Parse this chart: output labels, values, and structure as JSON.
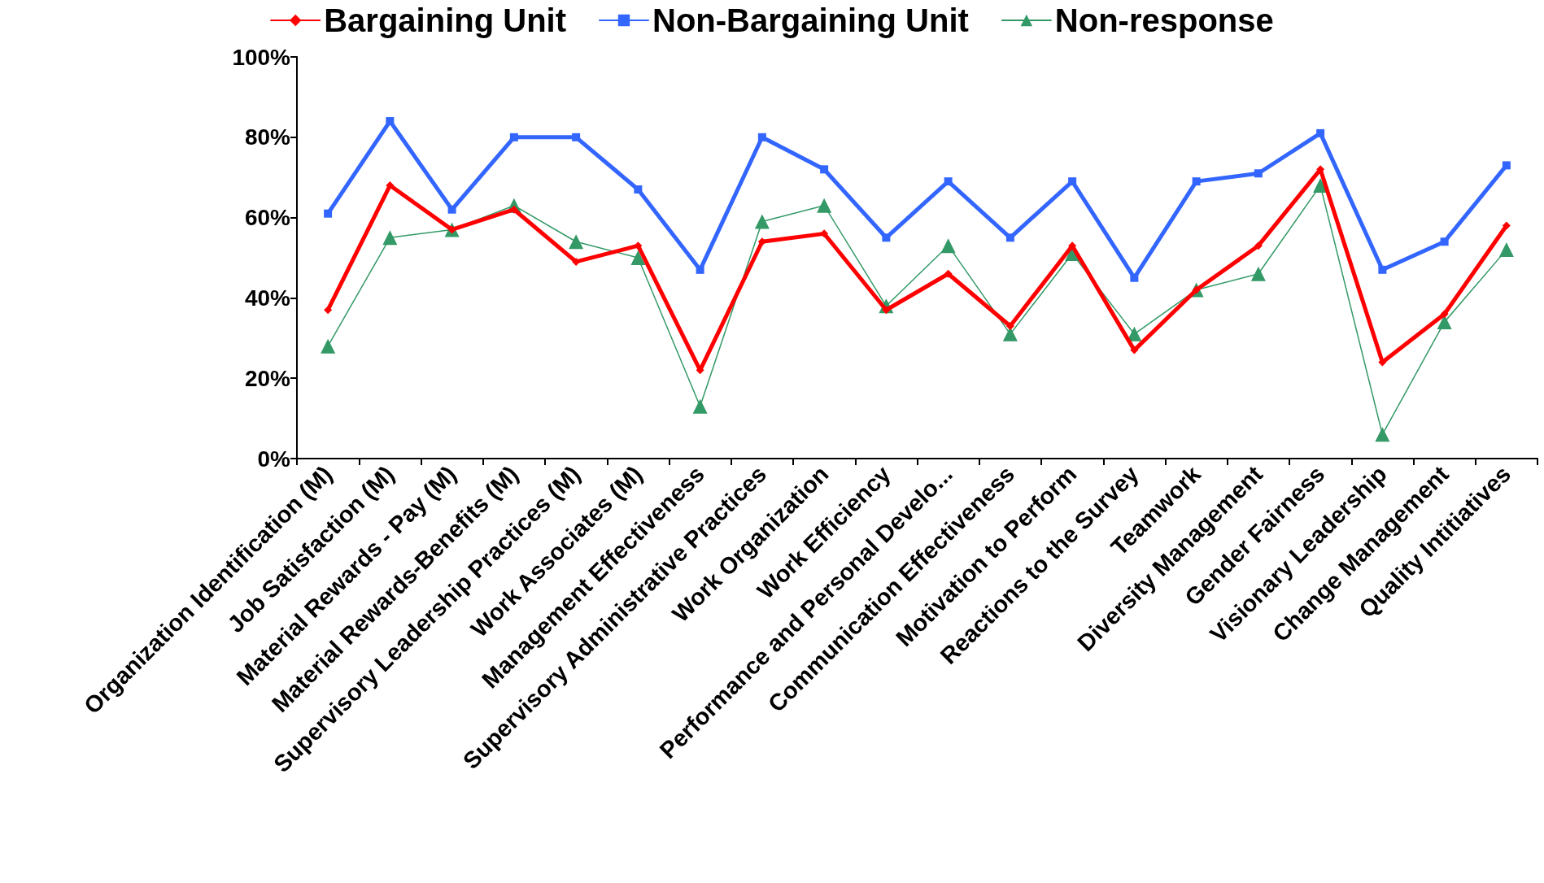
{
  "chart_data": {
    "type": "line",
    "categories": [
      "Organization Identification (M)",
      "Job Satisfaction (M)",
      "Material Rewards - Pay (M)",
      "Material Rewards-Benefits (M)",
      "Supervisory Leadership Practices (M)",
      "Work Associates (M)",
      "Management Effectiveness",
      "Supervisory Administrative Practices",
      "Work Organization",
      "Work Efficiency",
      "Performance and Personal Develo...",
      "Communication Effectiveness",
      "Motivation to Perform",
      "Reactions to the Survey",
      "Teamwork",
      "Diversity Management",
      "Gender Fairness",
      "Visionary Leadership",
      "Change Management",
      "Quality Intitiatives"
    ],
    "series": [
      {
        "name": "Bargaining Unit",
        "color": "#ff0000",
        "marker": "diamond",
        "values": [
          37,
          68,
          57,
          62,
          49,
          53,
          22,
          54,
          56,
          37,
          46,
          33,
          53,
          27,
          42,
          53,
          72,
          24,
          36,
          58
        ]
      },
      {
        "name": "Non-Bargaining Unit",
        "color": "#3366ff",
        "marker": "square",
        "values": [
          61,
          84,
          62,
          80,
          80,
          67,
          47,
          80,
          72,
          55,
          69,
          55,
          69,
          45,
          69,
          71,
          81,
          47,
          54,
          73
        ]
      },
      {
        "name": "Non-response",
        "color": "#339966",
        "marker": "triangle",
        "values": [
          28,
          55,
          57,
          63,
          54,
          50,
          13,
          59,
          63,
          38,
          53,
          31,
          51,
          31,
          42,
          46,
          68,
          6,
          34,
          52
        ]
      }
    ],
    "ylim": [
      0,
      100
    ],
    "yticks": [
      {
        "value": 0,
        "label": "0%"
      },
      {
        "value": 20,
        "label": "20%"
      },
      {
        "value": 40,
        "label": "40%"
      },
      {
        "value": 60,
        "label": "60%"
      },
      {
        "value": 80,
        "label": "80%"
      },
      {
        "value": 100,
        "label": "100%"
      }
    ],
    "grid": false,
    "legend": "top",
    "line_style": "solid"
  }
}
